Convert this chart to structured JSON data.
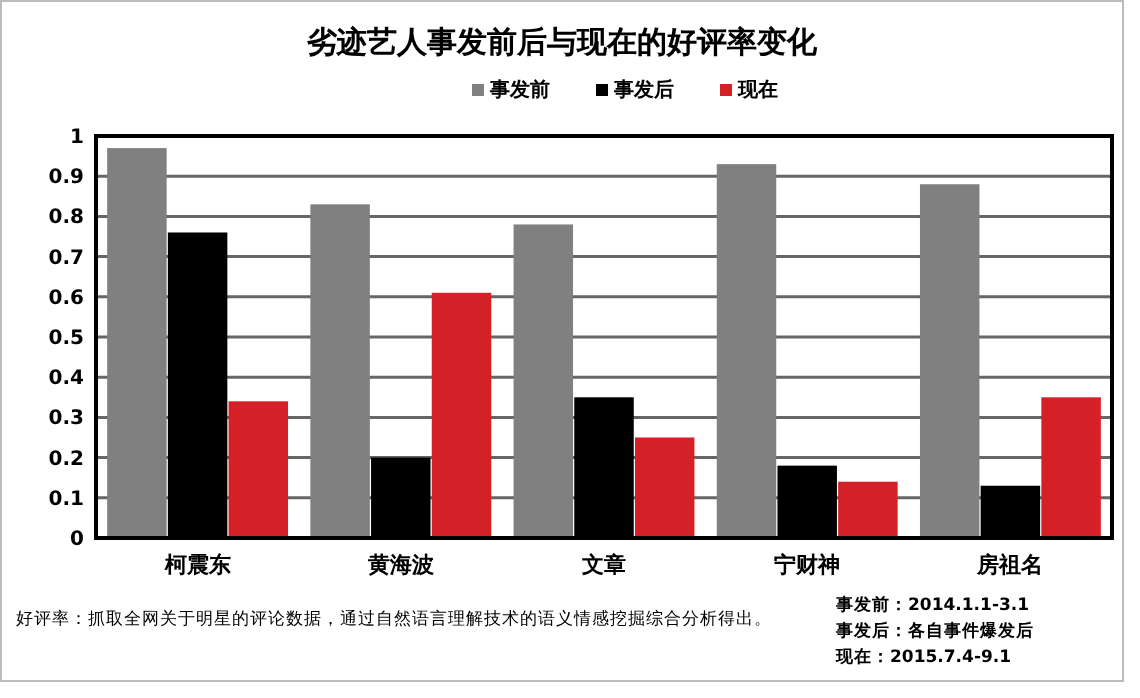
{
  "chart_data": {
    "type": "bar",
    "title": "劣迹艺人事发前后与现在的好评率变化",
    "categories": [
      "柯震东",
      "黄海波",
      "文章",
      "宁财神",
      "房祖名"
    ],
    "series": [
      {
        "name": "事发前",
        "color": "#808080",
        "values": [
          0.97,
          0.83,
          0.78,
          0.93,
          0.88
        ]
      },
      {
        "name": "事发后",
        "color": "#000000",
        "values": [
          0.76,
          0.2,
          0.35,
          0.18,
          0.13
        ]
      },
      {
        "name": "现在",
        "color": "#d42027",
        "values": [
          0.34,
          0.61,
          0.25,
          0.14,
          0.35
        ]
      }
    ],
    "ylim": [
      0,
      1
    ],
    "yticks": [
      0,
      0.1,
      0.2,
      0.3,
      0.4,
      0.5,
      0.6,
      0.7,
      0.8,
      0.9,
      1
    ],
    "grid": "y",
    "legend": "top right",
    "annotations": [
      "好评率：抓取全网关于明星的评论数据，通过自然语言理解技术的语义情感挖掘综合分析得出。",
      "事发前：2014.1.1-3.1",
      "事发后：各自事件爆发后",
      "现在：2015.7.4-9.1"
    ]
  }
}
